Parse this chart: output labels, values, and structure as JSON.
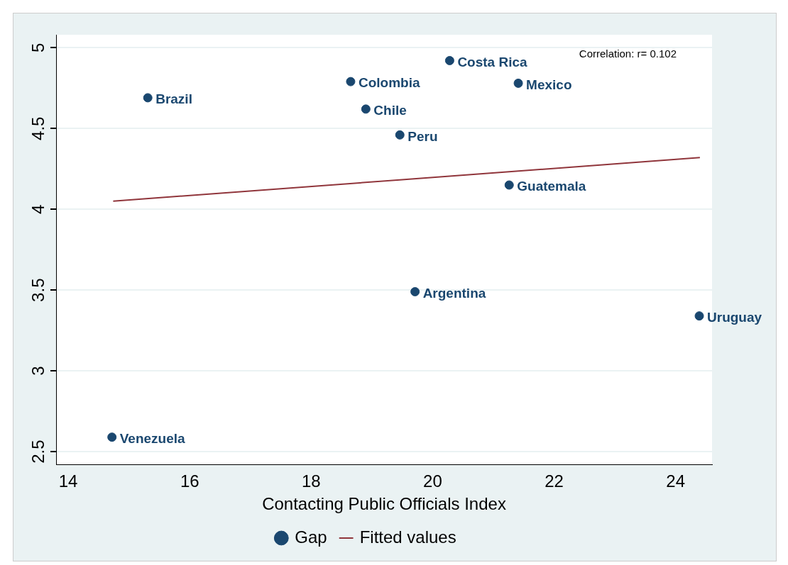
{
  "chart_data": {
    "type": "scatter",
    "xlabel": "Contacting Public Officials Index",
    "xlim": [
      13.8,
      24.6
    ],
    "xticks": [
      14,
      16,
      18,
      20,
      22,
      24
    ],
    "ylim": [
      2.42,
      5.08
    ],
    "yticks": [
      2.5,
      3,
      3.5,
      4,
      4.5,
      5
    ],
    "grid": "y",
    "legend": "bottom",
    "series": [
      {
        "name": "Gap",
        "marker": "circle",
        "color": "#1a476f",
        "x": [
          15.31,
          18.65,
          20.28,
          21.41,
          18.9,
          19.46,
          21.26,
          19.71,
          24.39,
          14.72
        ],
        "values": [
          4.69,
          4.79,
          4.92,
          4.78,
          4.62,
          4.46,
          4.15,
          3.49,
          3.34,
          2.59
        ]
      },
      {
        "name": "Fitted values",
        "type": "line",
        "color": "#90353b",
        "x": [
          14.74,
          24.4
        ],
        "values": [
          4.05,
          4.32
        ]
      }
    ],
    "annotations": [
      "Correlation: r= 0.102",
      {
        "text": "Brazil",
        "x": 15.31,
        "y": 4.69
      },
      {
        "text": "Colombia",
        "x": 18.65,
        "y": 4.79
      },
      {
        "text": "Costa Rica",
        "x": 20.28,
        "y": 4.92
      },
      {
        "text": "Mexico",
        "x": 21.41,
        "y": 4.78
      },
      {
        "text": "Chile",
        "x": 18.9,
        "y": 4.62
      },
      {
        "text": "Peru",
        "x": 19.46,
        "y": 4.46
      },
      {
        "text": "Guatemala",
        "x": 21.26,
        "y": 4.15
      },
      {
        "text": "Argentina",
        "x": 19.71,
        "y": 3.49
      },
      {
        "text": "Uruguay",
        "x": 24.39,
        "y": 3.34
      },
      {
        "text": "Venezuela",
        "x": 14.72,
        "y": 2.59
      }
    ]
  }
}
